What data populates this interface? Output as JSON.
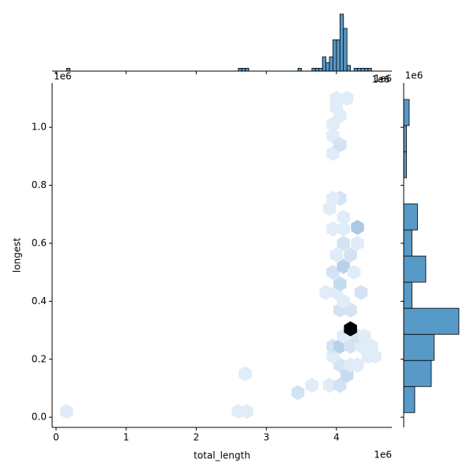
{
  "chart_data": [
    {
      "type": "hexbin",
      "xlabel": "total_length",
      "ylabel": "longest",
      "x_offset_label": "1e6",
      "y_offset_label": "1e6",
      "x": [
        0.15,
        2.6,
        2.72,
        2.7,
        3.45,
        3.65,
        3.9,
        4.05,
        4.15,
        4.05,
        4.2,
        3.95,
        4.3,
        4.45,
        4.55,
        3.95,
        4.05,
        4.2,
        4.35,
        4.5,
        4.1,
        4.3,
        4.4,
        4.2,
        4.05,
        4.2,
        4.1,
        3.85,
        4.0,
        4.35,
        4.05,
        3.95,
        4.1,
        4.25,
        4.0,
        4.2,
        4.1,
        4.3,
        3.95,
        4.1,
        4.3,
        4.1,
        3.9,
        4.05,
        3.95,
        3.95,
        3.95,
        4.05,
        3.95,
        4.0,
        4.0,
        4.15,
        4.05
      ],
      "y": [
        0.02,
        0.02,
        0.02,
        0.15,
        0.085,
        0.11,
        0.11,
        0.11,
        0.145,
        0.18,
        0.18,
        0.21,
        0.18,
        0.21,
        0.21,
        0.245,
        0.245,
        0.245,
        0.245,
        0.245,
        0.28,
        0.28,
        0.28,
        0.305,
        0.37,
        0.37,
        0.4,
        0.43,
        0.43,
        0.43,
        0.46,
        0.5,
        0.52,
        0.5,
        0.56,
        0.56,
        0.6,
        0.6,
        0.65,
        0.65,
        0.655,
        0.69,
        0.72,
        0.755,
        0.755,
        0.91,
        0.97,
        0.94,
        1.01,
        1.07,
        1.1,
        1.1,
        1.04
      ],
      "counts": [
        1,
        1,
        1,
        1,
        2,
        1,
        1,
        2,
        3,
        2,
        1,
        1,
        1,
        1,
        1,
        2,
        4,
        2,
        1,
        1,
        1,
        2,
        1,
        30,
        2,
        2,
        1,
        1,
        1,
        2,
        3,
        2,
        4,
        1,
        1,
        2,
        2,
        1,
        1,
        1,
        5,
        1,
        1,
        2,
        1,
        1,
        1,
        2,
        1,
        1,
        1,
        1,
        1
      ],
      "xlim": [
        -0.056,
        4.79
      ],
      "xticks": [
        0,
        1,
        2,
        3,
        4
      ],
      "ylim": [
        -0.035,
        1.153
      ],
      "yticks": [
        {
          "value": 0,
          "label": "0.0"
        },
        {
          "value": 0.2,
          "label": "0.2"
        },
        {
          "value": 0.4,
          "label": "0.4"
        },
        {
          "value": 0.6,
          "label": "0.6"
        },
        {
          "value": 0.8,
          "label": "0.8"
        },
        {
          "value": 1.0,
          "label": "1.0"
        }
      ],
      "color_low": "#eef5fc",
      "color_mid": "#2171b5",
      "color_high": "#000000"
    },
    {
      "type": "histogram",
      "orientation": "vertical",
      "color": "#5799c7",
      "offset_labels": [
        "1e6",
        "1e6"
      ],
      "bins": [
        0.1,
        0.15,
        0.2,
        0.25,
        0.3,
        0.35,
        0.4,
        0.45,
        0.5,
        0.55,
        0.6,
        0.65,
        0.7,
        0.75,
        0.8,
        0.85,
        0.9,
        0.95,
        1.0,
        1.05,
        1.1,
        1.15,
        1.2,
        1.25,
        1.3,
        1.35,
        1.4,
        1.45,
        1.5,
        1.55,
        1.6,
        1.65,
        1.7,
        1.75,
        1.8,
        1.85,
        1.9,
        1.95,
        2.0,
        2.05,
        2.1,
        2.15,
        2.2,
        2.25,
        2.3,
        2.35,
        2.4,
        2.45,
        2.5,
        2.55,
        2.6,
        2.65,
        2.7,
        2.75,
        2.8,
        2.85,
        2.9,
        2.95,
        3.0,
        3.05,
        3.1,
        3.15,
        3.2,
        3.25,
        3.3,
        3.35,
        3.4,
        3.45,
        3.5,
        3.55,
        3.6,
        3.65,
        3.7,
        3.75,
        3.8,
        3.85,
        3.9,
        3.95,
        4.0,
        4.05,
        4.1,
        4.15,
        4.2,
        4.25,
        4.3,
        4.35,
        4.4,
        4.45,
        4.5,
        4.55,
        4.6
      ],
      "counts": [
        0,
        1,
        0,
        0,
        0,
        0,
        0,
        0,
        0,
        0,
        0,
        0,
        0,
        0,
        0,
        0,
        0,
        0,
        0,
        0,
        0,
        0,
        0,
        0,
        0,
        0,
        0,
        0,
        0,
        0,
        0,
        0,
        0,
        0,
        0,
        0,
        0,
        0,
        0,
        0,
        0,
        0,
        0,
        0,
        0,
        0,
        0,
        0,
        0,
        0,
        1,
        1,
        1,
        0,
        0,
        0,
        0,
        0,
        0,
        0,
        0,
        0,
        0,
        0,
        0,
        0,
        0,
        1,
        0,
        0,
        0,
        1,
        1,
        1,
        5,
        3,
        5,
        11,
        11,
        20,
        15,
        2,
        0,
        1,
        1,
        1,
        1,
        1,
        0,
        0
      ],
      "ylim": [
        0,
        20.8
      ]
    },
    {
      "type": "histogram",
      "orientation": "horizontal",
      "color": "#5799c7",
      "offset_labels": [
        "1e6"
      ],
      "bins": [
        0.016,
        0.106,
        0.196,
        0.286,
        0.376,
        0.466,
        0.556,
        0.646,
        0.736,
        0.826,
        0.916,
        1.006,
        1.096
      ],
      "counts": [
        4,
        10,
        11,
        20,
        3,
        8,
        3,
        5,
        0,
        1,
        1,
        2
      ],
      "xlim": [
        0,
        22.6
      ]
    }
  ]
}
